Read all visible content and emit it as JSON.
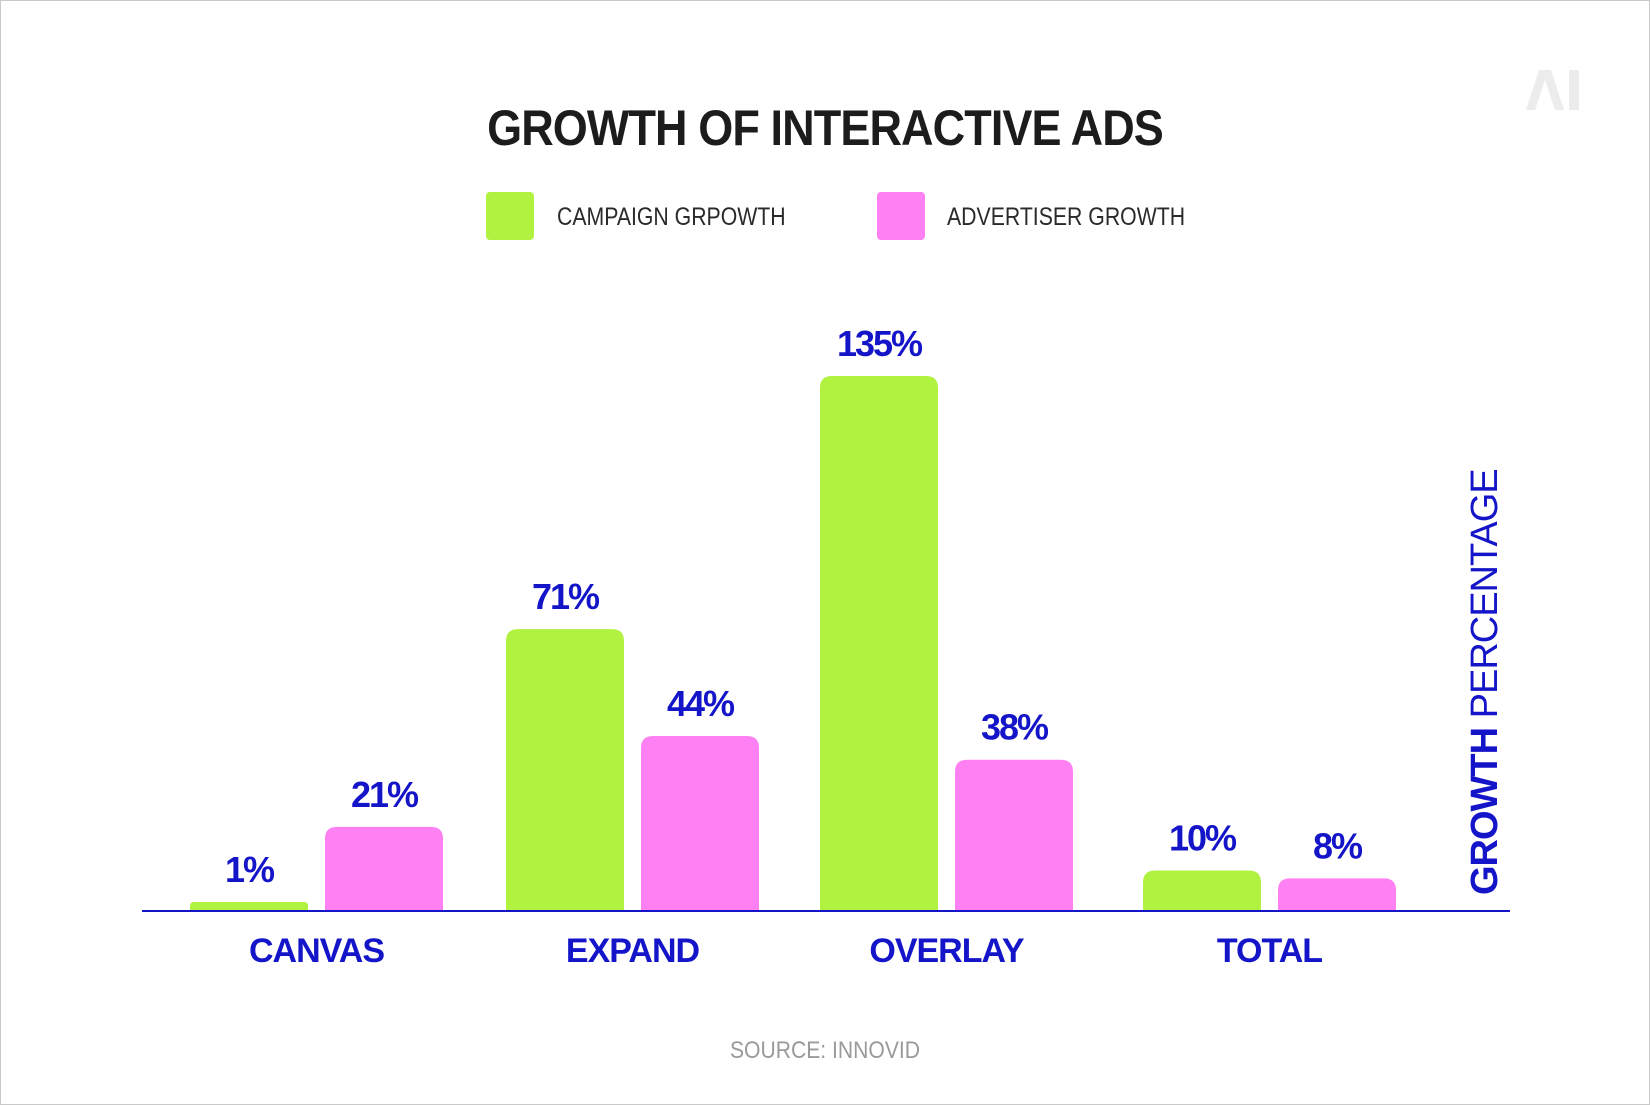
{
  "title": "GROWTH OF INTERACTIVE ADS",
  "logo_text": "AI",
  "source": "SOURCE: INNOVID",
  "legend": {
    "campaign_label": "CAMPAIGN GRPOWTH",
    "advertiser_label": "ADVERTISER GROWTH"
  },
  "colors": {
    "campaign": "#b1f240",
    "advertiser": "#ff80f2",
    "axis_text": "#1414c8",
    "title": "#1c1c1c"
  },
  "chart_data": {
    "type": "bar",
    "title": "GROWTH OF INTERACTIVE ADS",
    "categories": [
      "CANVAS",
      "EXPAND",
      "OVERLAY",
      "TOTAL"
    ],
    "series": [
      {
        "name": "CAMPAIGN GRPOWTH",
        "values": [
          1,
          71,
          135,
          10
        ],
        "labels": [
          "1%",
          "71%",
          "135%",
          "10%"
        ]
      },
      {
        "name": "ADVERTISER GROWTH",
        "values": [
          21,
          44,
          38,
          8
        ],
        "labels": [
          "21%",
          "44%",
          "38%",
          "8%"
        ]
      }
    ],
    "xlabel": "",
    "ylabel_bold": "GROWTH",
    "ylabel_light": "PERCENTAGE",
    "ylim": [
      0,
      135
    ],
    "grid": false,
    "legend_position": "top-center"
  }
}
